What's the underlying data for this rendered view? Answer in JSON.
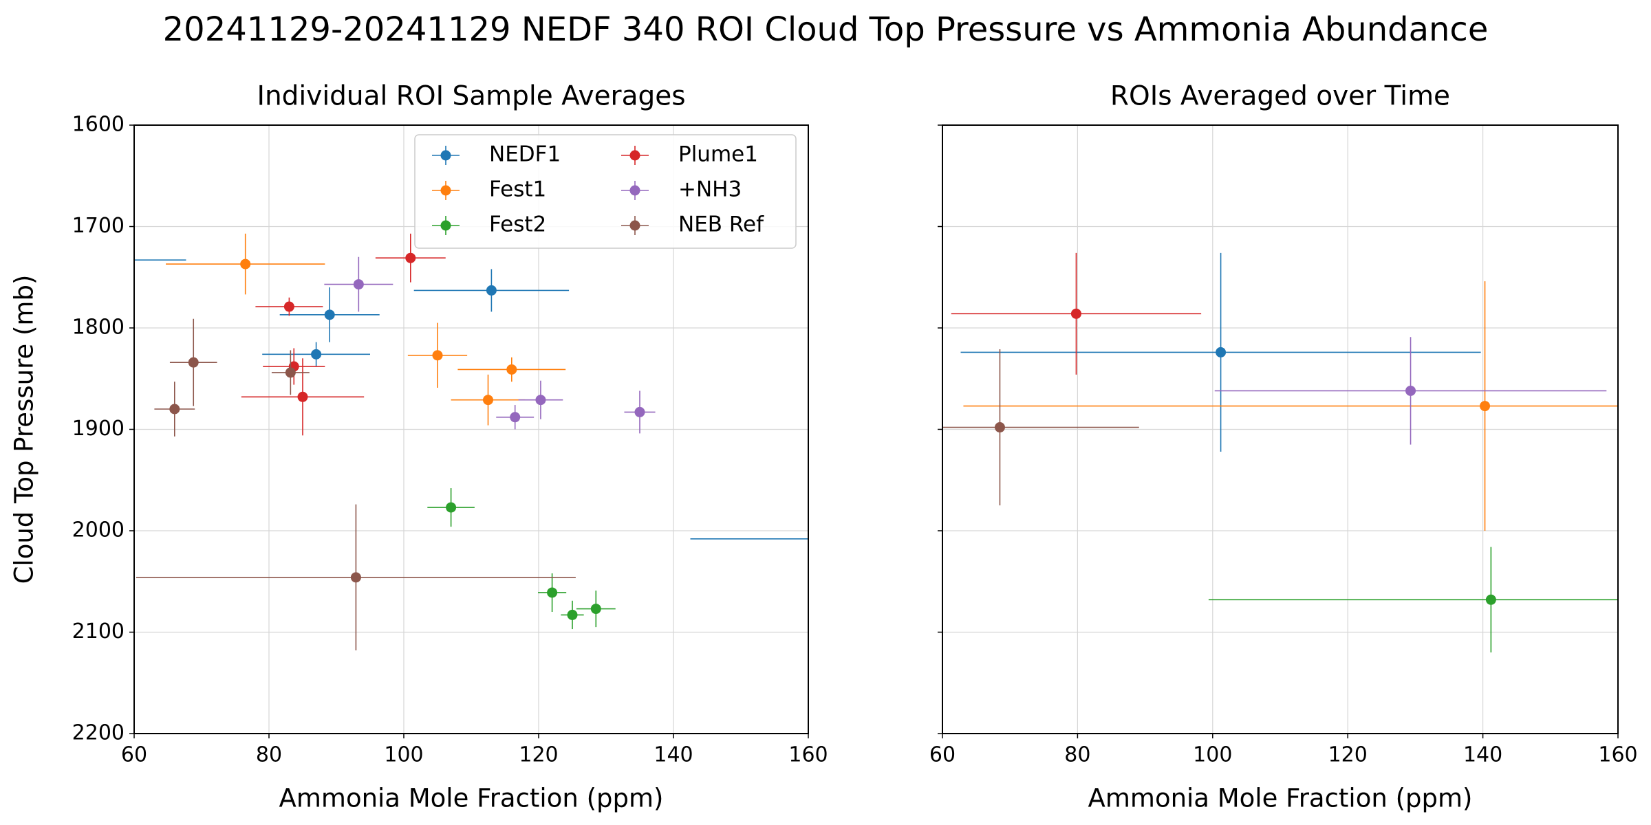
{
  "title": "20241129-20241129 NEDF 340 ROI Cloud Top Pressure vs Ammonia Abundance",
  "chart_data": [
    {
      "type": "scatter",
      "title": "Individual ROI Sample Averages",
      "xlabel": "Ammonia Mole Fraction (ppm)",
      "ylabel": "Cloud Top Pressure (mb)",
      "xlim": [
        60,
        160
      ],
      "ylim": [
        2200,
        1600
      ],
      "xticks": [
        60,
        80,
        100,
        120,
        140,
        160
      ],
      "yticks": [
        1600,
        1700,
        1800,
        1900,
        2000,
        2100,
        2200
      ],
      "grid": true,
      "legend": "upper right",
      "legend_columns": 2,
      "series": [
        {
          "name": "NEDF1",
          "color": "#1f77b4",
          "x": [
            113,
            89,
            87,
            55,
            165
          ],
          "values": [
            1763,
            1787,
            1826,
            1733,
            2008
          ],
          "xerr": [
            11.5,
            7.4,
            8,
            12.7,
            22.5
          ],
          "yerr": [
            21,
            27,
            12,
            0,
            0
          ]
        },
        {
          "name": "Fest1",
          "color": "#ff7f0e",
          "x": [
            76.5,
            105,
            116,
            112.5
          ],
          "values": [
            1737,
            1827,
            1841,
            1871
          ],
          "xerr": [
            11.8,
            4.4,
            8,
            5.5
          ],
          "yerr": [
            30,
            32,
            12,
            25
          ]
        },
        {
          "name": "Fest2",
          "color": "#2ca02c",
          "x": [
            107,
            122,
            125,
            128.5
          ],
          "values": [
            1977,
            2061,
            2083,
            2077
          ],
          "xerr": [
            3.5,
            2.1,
            1.7,
            2.9
          ],
          "yerr": [
            19,
            19,
            14,
            18
          ]
        },
        {
          "name": "Plume1",
          "color": "#d62728",
          "x": [
            101,
            83,
            83.7,
            85
          ],
          "values": [
            1731,
            1779,
            1838,
            1868
          ],
          "xerr": [
            5.2,
            5,
            4.6,
            9.1
          ],
          "yerr": [
            24,
            9,
            18,
            38
          ]
        },
        {
          "name": "+NH3",
          "color": "#9467bd",
          "x": [
            93.3,
            120.3,
            116.5,
            135
          ],
          "values": [
            1757,
            1871,
            1888,
            1883
          ],
          "xerr": [
            5.1,
            3.3,
            2.8,
            2.3
          ],
          "yerr": [
            27,
            19,
            12,
            21
          ]
        },
        {
          "name": "NEB Ref",
          "color": "#8c564b",
          "x": [
            66,
            68.8,
            83.2,
            92.9
          ],
          "values": [
            1880,
            1834,
            1844,
            2046
          ],
          "xerr": [
            3,
            3.5,
            2.8,
            32.6
          ],
          "yerr": [
            27,
            43,
            22,
            72
          ]
        }
      ]
    },
    {
      "type": "scatter",
      "title": "ROIs Averaged over Time",
      "xlabel": "Ammonia Mole Fraction (ppm)",
      "sharey": true,
      "xlim": [
        60,
        160
      ],
      "ylim": [
        2200,
        1600
      ],
      "xticks": [
        60,
        80,
        100,
        120,
        140,
        160
      ],
      "grid": true,
      "series": [
        {
          "color": "#1f77b4",
          "x": [
            101.2
          ],
          "values": [
            1824
          ],
          "xerr": [
            38.5
          ],
          "yerr": [
            98
          ]
        },
        {
          "color": "#ff7f0e",
          "x": [
            140.3
          ],
          "values": [
            1877
          ],
          "xerr": [
            77.2
          ],
          "yerr": [
            123
          ]
        },
        {
          "color": "#2ca02c",
          "x": [
            141.2
          ],
          "values": [
            2068
          ],
          "xerr": [
            41.8
          ],
          "yerr": [
            52
          ]
        },
        {
          "color": "#d62728",
          "x": [
            79.8
          ],
          "values": [
            1786
          ],
          "xerr": [
            18.5
          ],
          "yerr": [
            60
          ]
        },
        {
          "color": "#9467bd",
          "x": [
            129.3
          ],
          "values": [
            1862
          ],
          "xerr": [
            29
          ],
          "yerr": [
            53
          ]
        },
        {
          "color": "#8c564b",
          "x": [
            68.5
          ],
          "values": [
            1898
          ],
          "xerr": [
            20.6
          ],
          "yerr": [
            77
          ]
        }
      ]
    }
  ]
}
